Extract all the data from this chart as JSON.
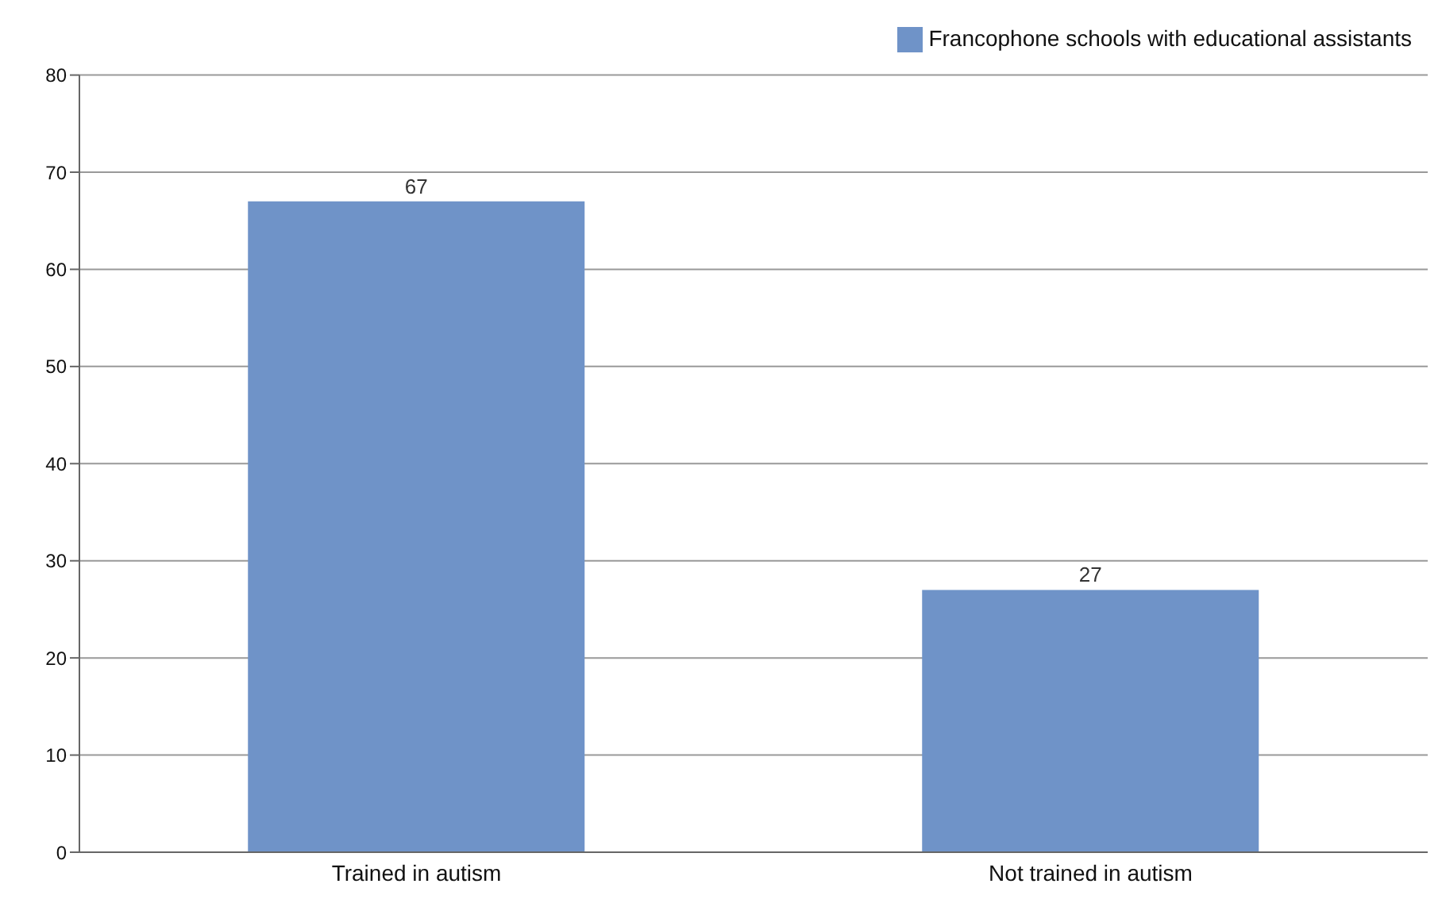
{
  "chart_data": {
    "type": "bar",
    "categories": [
      "Trained in autism",
      "Not trained in autism"
    ],
    "series": [
      {
        "name": "Francophone schools with educational assistants",
        "color": "#6f93c8",
        "values": [
          67,
          27
        ]
      }
    ],
    "ylim": [
      0,
      80
    ],
    "yticks": [
      0,
      10,
      20,
      30,
      40,
      50,
      60,
      70,
      80
    ],
    "grid": "y",
    "legend": "top right",
    "data_labels": true
  }
}
